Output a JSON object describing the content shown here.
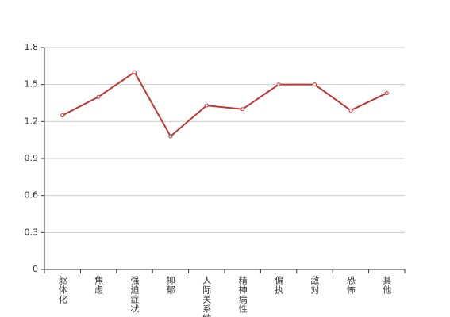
{
  "chart_data": {
    "type": "line",
    "categories": [
      "躯体化",
      "焦虑",
      "强迫症状",
      "抑郁",
      "人际关系敏感",
      "精神病性",
      "偏执",
      "敌对",
      "恐怖",
      "其他"
    ],
    "series": [
      {
        "color": "#c23531",
        "values": [
          1.25,
          1.4,
          1.6,
          1.08,
          1.33,
          1.3,
          1.5,
          1.5,
          1.29,
          1.43
        ]
      }
    ],
    "ylim": [
      0,
      1.8
    ],
    "yticks": [
      0,
      0.3,
      0.6,
      0.9,
      1.2,
      1.5,
      1.8
    ],
    "grid": true
  }
}
